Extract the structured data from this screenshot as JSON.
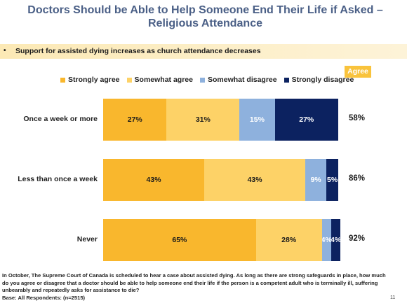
{
  "title": "Doctors Should be Able to Help Someone End Their Life if Asked – Religious Attendance",
  "banner": {
    "bullet": "•",
    "text": "Support for assisted dying increases as church attendance decreases"
  },
  "agree_header": "Agree",
  "chart_data": {
    "type": "bar",
    "orientation": "horizontal",
    "stacked": true,
    "categories": [
      "Once a week or more",
      "Less than once a week",
      "Never"
    ],
    "series": [
      {
        "name": "Strongly agree",
        "color": "#f9b72d",
        "values": [
          27,
          43,
          65
        ],
        "labels": [
          "27%",
          "43%",
          "65%"
        ]
      },
      {
        "name": "Somewhat agree",
        "color": "#fdd267",
        "values": [
          31,
          43,
          28
        ],
        "labels": [
          "31%",
          "43%",
          "28%"
        ]
      },
      {
        "name": "Somewhat disagree",
        "color": "#8eb1dd",
        "values": [
          15,
          9,
          4
        ],
        "labels": [
          "15%",
          "9%",
          "4%"
        ]
      },
      {
        "name": "Strongly disagree",
        "color": "#0c2260",
        "values": [
          27,
          5,
          4
        ],
        "labels": [
          "27%",
          "5%",
          "4%"
        ]
      }
    ],
    "agree_totals": [
      "58%",
      "86%",
      "92%"
    ],
    "legend_position": "top",
    "xlim": [
      0,
      100
    ]
  },
  "footnote": {
    "question": "In October, The Supreme Court of Canada is scheduled to hear a case about assisted dying. As long as there are strong safeguards in place, how much do you agree or disagree that a doctor should be able to help someone end their life if the person is a competent adult who is terminally ill, suffering unbearably and repeatedly asks for assistance to die?",
    "base": "Base: All Respondents: (n=2515)"
  },
  "page_number": "11"
}
